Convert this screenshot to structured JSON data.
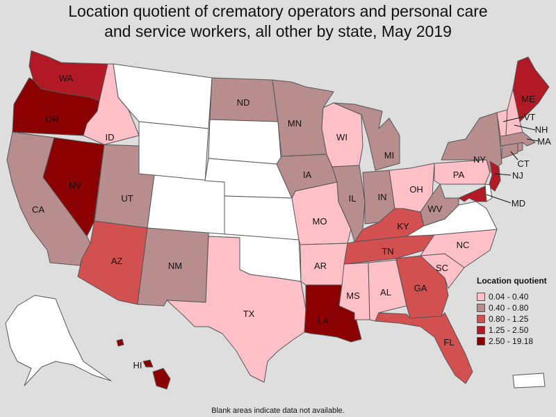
{
  "title": {
    "line1": "Location quotient of crematory operators and personal care",
    "line2": "and service workers, all other by state, May 2019"
  },
  "legend": {
    "title": "Location quotient",
    "items": [
      {
        "label": "0.04 - 0.40",
        "color": "#ffc0c8"
      },
      {
        "label": "0.40 - 0.80",
        "color": "#b88d8d"
      },
      {
        "label": "0.80 - 1.25",
        "color": "#d25050"
      },
      {
        "label": "1.25 - 2.50",
        "color": "#b11a24"
      },
      {
        "label": "2.50 - 19.18",
        "color": "#8b0000"
      }
    ]
  },
  "colors": {
    "no_data": "#ffffff",
    "background": "#dedede"
  },
  "states": {
    "WA": {
      "label": "WA",
      "class": 3
    },
    "OR": {
      "label": "OR",
      "class": 4
    },
    "CA": {
      "label": "CA",
      "class": 1
    },
    "NV": {
      "label": "NV",
      "class": 4
    },
    "ID": {
      "label": "ID",
      "class": 0
    },
    "MT": {
      "label": "",
      "class": null
    },
    "WY": {
      "label": "",
      "class": null
    },
    "UT": {
      "label": "UT",
      "class": 1
    },
    "AZ": {
      "label": "AZ",
      "class": 2
    },
    "CO": {
      "label": "",
      "class": null
    },
    "NM": {
      "label": "NM",
      "class": 1
    },
    "ND": {
      "label": "ND",
      "class": 1
    },
    "SD": {
      "label": "",
      "class": null
    },
    "NE": {
      "label": "",
      "class": null
    },
    "KS": {
      "label": "",
      "class": null
    },
    "OK": {
      "label": "",
      "class": null
    },
    "TX": {
      "label": "TX",
      "class": 0
    },
    "MN": {
      "label": "MN",
      "class": 1
    },
    "IA": {
      "label": "IA",
      "class": 1
    },
    "MO": {
      "label": "MO",
      "class": 0
    },
    "AR": {
      "label": "AR",
      "class": 0
    },
    "LA": {
      "label": "LA",
      "class": 4
    },
    "WI": {
      "label": "WI",
      "class": 0
    },
    "IL": {
      "label": "IL",
      "class": 1
    },
    "MI": {
      "label": "MI",
      "class": 1
    },
    "IN": {
      "label": "IN",
      "class": 1
    },
    "OH": {
      "label": "OH",
      "class": 0
    },
    "KY": {
      "label": "KY",
      "class": 2
    },
    "TN": {
      "label": "TN",
      "class": 2
    },
    "MS": {
      "label": "MS",
      "class": 0
    },
    "AL": {
      "label": "AL",
      "class": 0
    },
    "GA": {
      "label": "GA",
      "class": 2
    },
    "FL": {
      "label": "FL",
      "class": 2
    },
    "SC": {
      "label": "SC",
      "class": 0
    },
    "NC": {
      "label": "NC",
      "class": 0
    },
    "VA": {
      "label": "",
      "class": null
    },
    "WV": {
      "label": "WV",
      "class": 1
    },
    "PA": {
      "label": "PA",
      "class": 0
    },
    "NY": {
      "label": "NY",
      "class": 1
    },
    "VT": {
      "label": "VT",
      "class": 0
    },
    "NH": {
      "label": "NH",
      "class": 0
    },
    "ME": {
      "label": "ME",
      "class": 3
    },
    "MA": {
      "label": "MA",
      "class": 1
    },
    "CT": {
      "label": "CT",
      "class": 1
    },
    "RI": {
      "label": "",
      "class": 1
    },
    "NJ": {
      "label": "NJ",
      "class": 3
    },
    "DE": {
      "label": "",
      "class": null
    },
    "MD": {
      "label": "MD",
      "class": 3
    },
    "AK": {
      "label": "",
      "class": null
    },
    "HI": {
      "label": "HI",
      "class": 4
    },
    "PR": {
      "label": "",
      "class": null
    }
  },
  "note": "Blank areas indicate data not available."
}
